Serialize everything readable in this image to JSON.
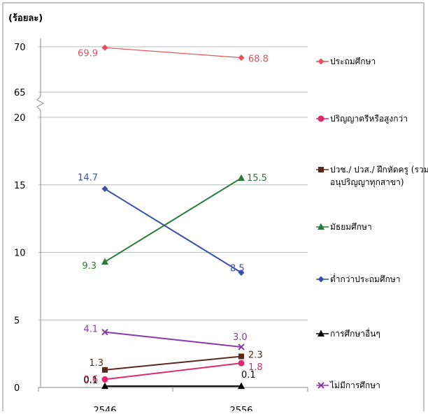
{
  "chart_data": {
    "type": "line",
    "unit_label": "(ร้อยละ)",
    "categories": [
      "2546",
      "2556"
    ],
    "y_ticks_upper": [
      "70",
      "65"
    ],
    "y_ticks_lower": [
      "20",
      "15",
      "10",
      "5",
      "0"
    ],
    "ylim_lower": [
      0,
      20
    ],
    "ylim_upper": [
      65,
      70
    ],
    "axis_break": true,
    "grid": true,
    "legend_position": "right",
    "series": [
      {
        "name": "ประถมศึกษา",
        "values": [
          69.9,
          68.8
        ],
        "labels": [
          "69.9",
          "68.8"
        ],
        "color": "#e8505a",
        "marker": "diamond",
        "axis": "upper"
      },
      {
        "name": "ปริญญาตรีหรือสูงกว่า",
        "values": [
          0.6,
          1.8
        ],
        "labels": [
          "0.6",
          "1.8"
        ],
        "color": "#e0286e",
        "marker": "circle",
        "axis": "lower"
      },
      {
        "name": "ปวช./ ปวส./ ฝึกหัดครู (รวมอนุปริญญาทุกสาขา)",
        "name_lines": [
          "ปวช./ ปวส./ ฝึกหัดครู (รวม",
          "อนุปริญญาทุกสาขา)"
        ],
        "values": [
          1.3,
          2.3
        ],
        "labels": [
          "1.3",
          "2.3"
        ],
        "color": "#5a2a18",
        "marker": "square",
        "axis": "lower"
      },
      {
        "name": "มัธยมศึกษา",
        "values": [
          9.3,
          15.5
        ],
        "labels": [
          "9.3",
          "15.5"
        ],
        "color": "#2a7a38",
        "marker": "triangle",
        "axis": "lower"
      },
      {
        "name": "ต่ำกว่าประถมศึกษา",
        "values": [
          14.7,
          8.5
        ],
        "labels": [
          "14.7",
          "8.5"
        ],
        "color": "#3a4fa8",
        "marker": "diamond",
        "axis": "lower"
      },
      {
        "name": "การศึกษาอื่นๆ",
        "values": [
          0.1,
          0.1
        ],
        "labels": [
          "0.1",
          "0.1"
        ],
        "color": "#000000",
        "marker": "triangle",
        "axis": "lower"
      },
      {
        "name": "ไม่มีการศึกษา",
        "values": [
          4.1,
          3.0
        ],
        "labels": [
          "4.1",
          "3.0"
        ],
        "color": "#8a3aa8",
        "marker": "x",
        "axis": "lower"
      }
    ]
  }
}
